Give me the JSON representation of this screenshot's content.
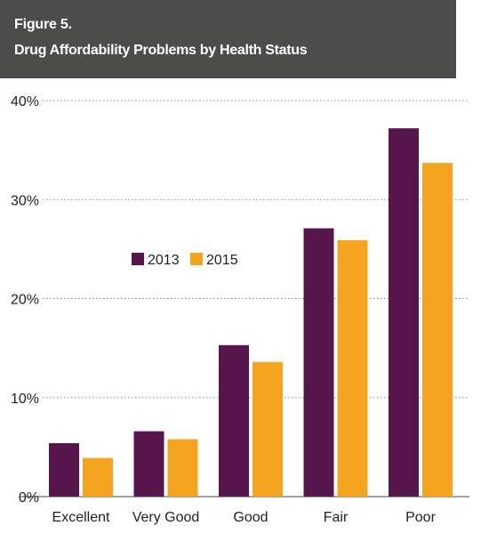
{
  "figure": {
    "label": "Figure 5.",
    "title": "Drug Affordability Problems by Health Status"
  },
  "colors": {
    "header_bg": "#4a4e4b",
    "series_2013": "#56164c",
    "series_2015": "#f4a41f",
    "gridline": "#8c8c8c"
  },
  "chart_data": {
    "type": "bar",
    "categories": [
      "Excellent",
      "Very Good",
      "Good",
      "Fair",
      "Poor"
    ],
    "series": [
      {
        "name": "2013",
        "values": [
          5.4,
          6.6,
          15.3,
          27.1,
          37.2
        ]
      },
      {
        "name": "2015",
        "values": [
          3.9,
          5.8,
          13.6,
          25.9,
          33.7
        ]
      }
    ],
    "yticks": [
      "0%",
      "10%",
      "20%",
      "30%",
      "40%"
    ],
    "ylim": [
      0,
      40
    ],
    "grid": true,
    "legend_position": "upper-center",
    "xlabel": "",
    "ylabel": ""
  }
}
